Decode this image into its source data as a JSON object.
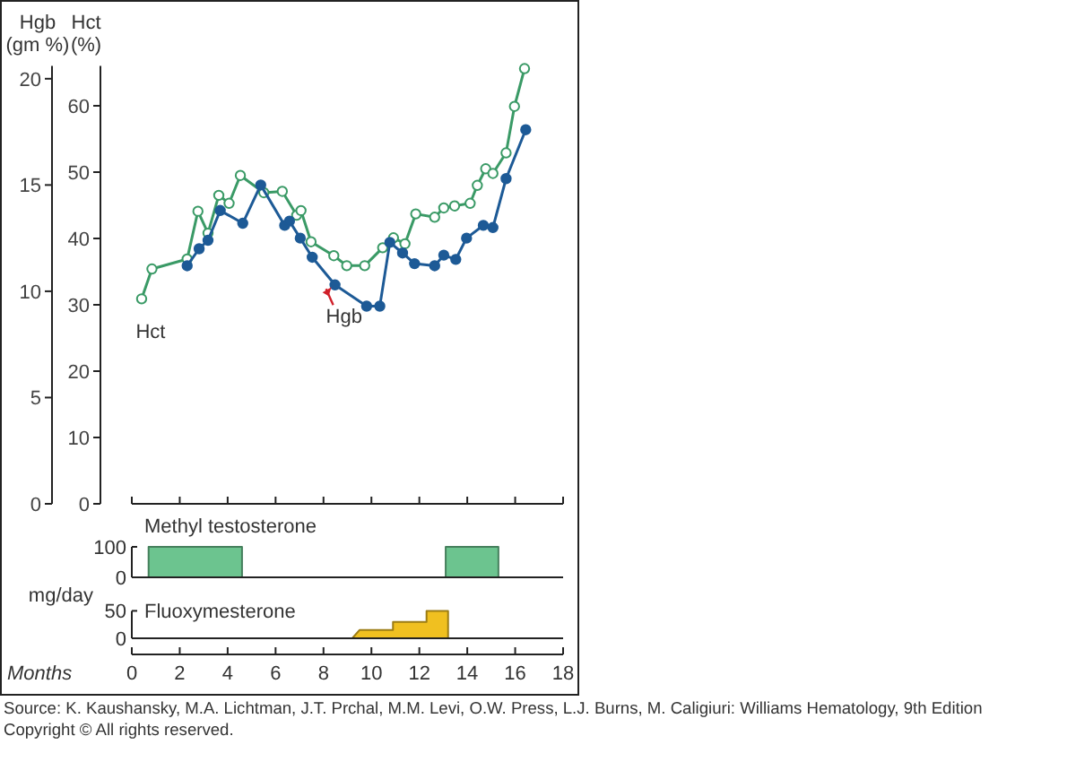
{
  "chart_data": [
    {
      "type": "line",
      "ylabel": "Hct (%)",
      "y2label": "Hgb (gm %)",
      "xlim": [
        0,
        18
      ],
      "xticks": [
        {
          "value": 0,
          "label": null
        },
        {
          "value": 2,
          "label": null
        },
        {
          "value": 4,
          "label": null
        },
        {
          "value": 6,
          "label": null
        },
        {
          "value": 8,
          "label": null
        },
        {
          "value": 10,
          "label": null
        },
        {
          "value": 12,
          "label": null
        },
        {
          "value": 14,
          "label": null
        },
        {
          "value": 16,
          "label": null
        },
        {
          "value": 18,
          "label": null
        }
      ],
      "ylim": [
        0,
        66
      ],
      "yticks": [
        0,
        10,
        20,
        30,
        40,
        50,
        60
      ],
      "y2lim": [
        0,
        20.6
      ],
      "y2ticks": [
        0,
        5,
        10,
        15,
        20
      ],
      "tick_labels": "y",
      "marker": "circle",
      "annotations": [
        {
          "text": "Hct",
          "x": 0.41,
          "y": 30.9
        },
        {
          "text": "Hgb",
          "x": 8.48,
          "y": 33.2
        },
        "Source: K. Kaushansky, M.A. Lichtman, J.T. Prchal, M.M. Levi, O.W. Press, L.J. Burns, M. Caligiuri: Williams Hematology, 9th Edition",
        "Copyright © All rights reserved."
      ],
      "series": [
        {
          "color": "#3a9a66",
          "x": [
            0.41,
            0.84,
            2.31,
            2.76,
            3.18,
            3.63,
            4.06,
            4.53,
            5.51,
            6.28,
            6.88,
            7.06,
            7.48,
            8.43,
            8.97,
            9.72,
            10.47,
            10.92,
            11.4,
            11.85,
            12.64,
            13.02,
            13.47,
            14.12,
            14.42,
            14.77,
            15.07,
            15.62,
            15.97,
            16.39
          ],
          "values": [
            30.9,
            35.4,
            36.9,
            44.1,
            40.8,
            46.5,
            45.3,
            49.5,
            46.9,
            47.1,
            43.5,
            44.2,
            39.5,
            37.4,
            35.9,
            35.9,
            38.6,
            40.1,
            39.2,
            43.7,
            43.2,
            44.6,
            44.9,
            45.3,
            48,
            50.5,
            49.8,
            52.9,
            59.9,
            65.6
          ]
        },
        {
          "color": "#1d5a96",
          "axis": "y2",
          "x": [
            2.31,
            2.81,
            3.18,
            3.69,
            4.63,
            5.38,
            6.38,
            6.58,
            7.03,
            7.53,
            8.48,
            9.8,
            10.35,
            10.77,
            11.3,
            11.8,
            12.64,
            13.02,
            13.52,
            13.97,
            14.67,
            15.07,
            15.62,
            16.44
          ],
          "values": [
            11.2,
            12,
            12.4,
            13.8,
            13.2,
            15,
            13.1,
            13.3,
            12.5,
            11.6,
            10.3,
            9.3,
            9.3,
            12.3,
            11.8,
            11.3,
            11.2,
            11.7,
            11.5,
            12.5,
            13.1,
            13,
            15.3,
            17.6
          ]
        }
      ]
    },
    {
      "type": "area",
      "title": "Methyl testosterone",
      "ylabel": "mg/day",
      "xlim": [
        0,
        18
      ],
      "ylim": [
        0,
        100
      ],
      "yticks": [
        0,
        100
      ],
      "tick_labels": "y",
      "series": [
        {
          "color": "#6cc48f",
          "x": [
            0.7,
            0.7,
            4.6,
            4.6,
            13.1,
            13.1,
            15.3,
            15.3
          ],
          "values": [
            0,
            100,
            100,
            0,
            0,
            100,
            100,
            0
          ]
        }
      ]
    },
    {
      "type": "area",
      "title": "Fluoxymesterone",
      "xlabel": "Months",
      "xlim": [
        0,
        18
      ],
      "xticks": [
        0,
        2,
        4,
        6,
        8,
        10,
        12,
        14,
        16,
        18
      ],
      "ylim": [
        0,
        50
      ],
      "yticks": [
        0,
        50
      ],
      "series": [
        {
          "color": "#f0c020",
          "x": [
            9.2,
            9.5,
            10.9,
            10.9,
            12.3,
            12.3,
            13.2,
            13.2
          ],
          "values": [
            0,
            15,
            15,
            30,
            30,
            50,
            50,
            0
          ]
        }
      ]
    }
  ]
}
